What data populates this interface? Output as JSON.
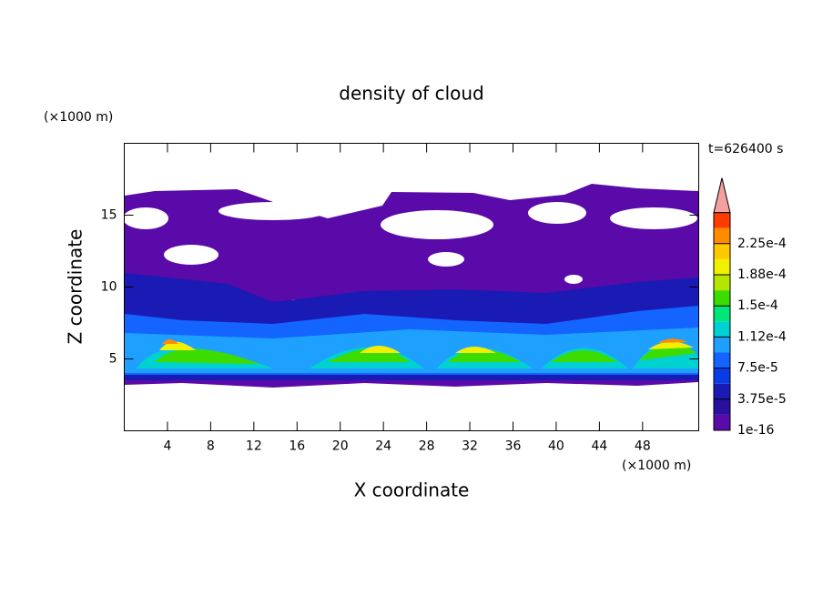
{
  "chart_data": {
    "type": "contour",
    "title": "density of cloud",
    "x_label": "X coordinate",
    "y_label": "Z coordinate",
    "x_unit": "(×1000 m)",
    "y_unit": "(×1000 m)",
    "annotation": "t=626400 s",
    "xlim": [
      0,
      53.2
    ],
    "xticks": [
      4,
      8,
      12,
      16,
      20,
      24,
      28,
      32,
      36,
      40,
      44,
      48
    ],
    "ylim": [
      0,
      20
    ],
    "yticks": [
      5,
      10,
      15
    ],
    "levels": [
      {
        "value": 1e-16,
        "label": "1e-16"
      },
      {
        "value": 3.75e-05,
        "label": "3.75e-5"
      },
      {
        "value": 7.5e-05,
        "label": "7.5e-5"
      },
      {
        "value": 0.000112,
        "label": "1.12e-4"
      },
      {
        "value": 0.00015,
        "label": "1.5e-4"
      },
      {
        "value": 0.000188,
        "label": "1.88e-4"
      },
      {
        "value": 0.000225,
        "label": "2.25e-4"
      }
    ],
    "colors": [
      "#5a0aa8",
      "#2a10a0",
      "#1a1ab4",
      "#0a3ce6",
      "#1464ff",
      "#1ea0ff",
      "#00d2d2",
      "#00e678",
      "#3cdc00",
      "#b4e600",
      "#f0f000",
      "#ffc800",
      "#ff8c00",
      "#ff3c00"
    ],
    "extend_color": "#f4a0a0"
  }
}
